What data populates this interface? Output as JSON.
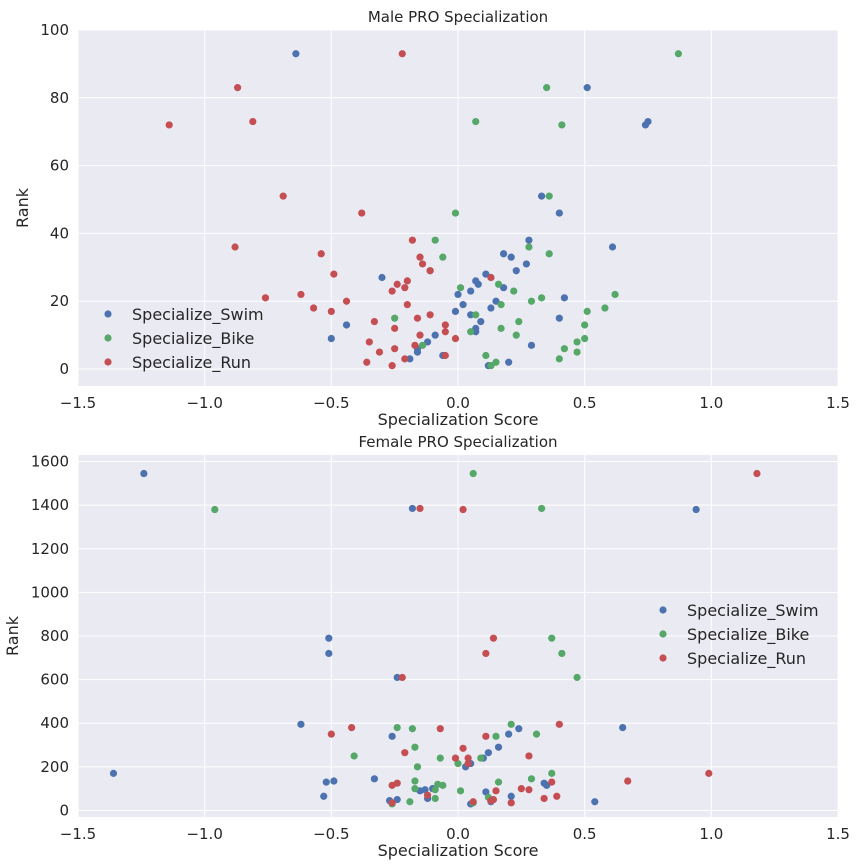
{
  "colors": {
    "swim": "#4c72b0",
    "bike": "#55a868",
    "run": "#c44e52"
  },
  "chart_data": [
    {
      "type": "scatter",
      "title": "Male PRO Specialization",
      "xlabel": "Specialization Score",
      "ylabel": "Rank",
      "xlim": [
        -1.5,
        1.5
      ],
      "ylim": [
        -5,
        100
      ],
      "xticks": [
        -1.5,
        -1.0,
        -0.5,
        0.0,
        0.5,
        1.0,
        1.5
      ],
      "xtick_labels": [
        "−1.5",
        "−1.0",
        "−0.5",
        "0.0",
        "0.5",
        "1.0",
        "1.5"
      ],
      "yticks": [
        0,
        20,
        40,
        60,
        80,
        100
      ],
      "ytick_labels": [
        "0",
        "20",
        "40",
        "60",
        "80",
        "100"
      ],
      "legend_position": "lower-left",
      "series": [
        {
          "name": "Specialize_Swim",
          "color_key": "swim",
          "points": [
            [
              -0.64,
              93
            ],
            [
              0.51,
              83
            ],
            [
              0.75,
              73
            ],
            [
              0.74,
              72
            ],
            [
              0.33,
              51
            ],
            [
              0.4,
              46
            ],
            [
              0.28,
              38
            ],
            [
              0.61,
              36
            ],
            [
              0.18,
              34
            ],
            [
              0.21,
              33
            ],
            [
              0.27,
              31
            ],
            [
              0.23,
              29
            ],
            [
              0.11,
              28
            ],
            [
              -0.3,
              27
            ],
            [
              0.07,
              26
            ],
            [
              0.08,
              25
            ],
            [
              0.18,
              24
            ],
            [
              0.0,
              22
            ],
            [
              0.05,
              23
            ],
            [
              0.42,
              21
            ],
            [
              0.02,
              19
            ],
            [
              0.15,
              20
            ],
            [
              0.13,
              18
            ],
            [
              -0.01,
              17
            ],
            [
              0.05,
              16
            ],
            [
              0.09,
              14
            ],
            [
              0.4,
              15
            ],
            [
              -0.44,
              13
            ],
            [
              0.07,
              12
            ],
            [
              0.07,
              11
            ],
            [
              -0.09,
              10
            ],
            [
              -0.5,
              9
            ],
            [
              -0.12,
              8
            ],
            [
              0.29,
              7
            ],
            [
              -0.16,
              6
            ],
            [
              -0.16,
              5
            ],
            [
              -0.06,
              4
            ],
            [
              -0.19,
              3
            ],
            [
              0.2,
              2
            ],
            [
              0.12,
              1
            ]
          ]
        },
        {
          "name": "Specialize_Bike",
          "color_key": "bike",
          "points": [
            [
              0.87,
              93
            ],
            [
              0.35,
              83
            ],
            [
              0.07,
              73
            ],
            [
              0.41,
              72
            ],
            [
              0.36,
              51
            ],
            [
              -0.01,
              46
            ],
            [
              -0.09,
              38
            ],
            [
              0.28,
              36
            ],
            [
              0.36,
              34
            ],
            [
              -0.06,
              33
            ],
            [
              0.29,
              20
            ],
            [
              0.13,
              27
            ],
            [
              -0.11,
              29
            ],
            [
              0.01,
              24
            ],
            [
              0.16,
              25
            ],
            [
              0.22,
              23
            ],
            [
              0.62,
              22
            ],
            [
              0.33,
              21
            ],
            [
              0.17,
              19
            ],
            [
              0.58,
              18
            ],
            [
              0.51,
              17
            ],
            [
              0.07,
              16
            ],
            [
              -0.25,
              15
            ],
            [
              0.5,
              13
            ],
            [
              0.24,
              14
            ],
            [
              0.17,
              12
            ],
            [
              0.05,
              11
            ],
            [
              0.23,
              10
            ],
            [
              0.5,
              9
            ],
            [
              0.47,
              8
            ],
            [
              -0.14,
              7
            ],
            [
              0.42,
              6
            ],
            [
              0.47,
              5
            ],
            [
              0.11,
              4
            ],
            [
              0.4,
              3
            ],
            [
              0.15,
              2
            ],
            [
              0.13,
              1
            ]
          ]
        },
        {
          "name": "Specialize_Run",
          "color_key": "run",
          "points": [
            [
              -0.22,
              93
            ],
            [
              -0.87,
              83
            ],
            [
              -0.81,
              73
            ],
            [
              -1.14,
              72
            ],
            [
              -0.69,
              51
            ],
            [
              -0.38,
              46
            ],
            [
              -0.18,
              38
            ],
            [
              -0.88,
              36
            ],
            [
              -0.54,
              34
            ],
            [
              -0.15,
              33
            ],
            [
              -0.14,
              31
            ],
            [
              -0.11,
              29
            ],
            [
              -0.49,
              28
            ],
            [
              0.13,
              27
            ],
            [
              -0.2,
              26
            ],
            [
              -0.24,
              25
            ],
            [
              -0.21,
              24
            ],
            [
              -0.26,
              23
            ],
            [
              -0.62,
              22
            ],
            [
              -0.76,
              21
            ],
            [
              -0.44,
              20
            ],
            [
              -0.2,
              19
            ],
            [
              -0.57,
              18
            ],
            [
              -0.5,
              17
            ],
            [
              -0.11,
              16
            ],
            [
              -0.16,
              15
            ],
            [
              -0.33,
              14
            ],
            [
              -0.05,
              13
            ],
            [
              -0.25,
              12
            ],
            [
              -0.05,
              11
            ],
            [
              -0.15,
              10
            ],
            [
              -0.01,
              9
            ],
            [
              -0.35,
              8
            ],
            [
              -0.17,
              7
            ],
            [
              -0.25,
              6
            ],
            [
              -0.31,
              5
            ],
            [
              -0.05,
              4
            ],
            [
              -0.21,
              3
            ],
            [
              -0.36,
              2
            ],
            [
              -0.26,
              1
            ]
          ]
        }
      ]
    },
    {
      "type": "scatter",
      "title": "Female PRO Specialization",
      "xlabel": "Specialization Score",
      "ylabel": "Rank",
      "xlim": [
        -1.5,
        1.5
      ],
      "ylim": [
        -30,
        1630
      ],
      "xticks": [
        -1.5,
        -1.0,
        -0.5,
        0.0,
        0.5,
        1.0,
        1.5
      ],
      "xtick_labels": [
        "−1.5",
        "−1.0",
        "−0.5",
        "0.0",
        "0.5",
        "1.0",
        "1.5"
      ],
      "yticks": [
        0,
        200,
        400,
        600,
        800,
        1000,
        1200,
        1400,
        1600
      ],
      "ytick_labels": [
        "0",
        "200",
        "400",
        "600",
        "800",
        "1000",
        "1200",
        "1400",
        "1600"
      ],
      "legend_position": "center-right",
      "series": [
        {
          "name": "Specialize_Swim",
          "color_key": "swim",
          "points": [
            [
              -1.24,
              1545
            ],
            [
              -0.18,
              1385
            ],
            [
              0.94,
              1380
            ],
            [
              -0.51,
              790
            ],
            [
              -0.51,
              720
            ],
            [
              -0.24,
              610
            ],
            [
              -0.62,
              395
            ],
            [
              0.65,
              380
            ],
            [
              0.24,
              375
            ],
            [
              0.2,
              350
            ],
            [
              -0.26,
              340
            ],
            [
              0.16,
              290
            ],
            [
              0.12,
              265
            ],
            [
              0.1,
              240
            ],
            [
              0.05,
              215
            ],
            [
              0.03,
              200
            ],
            [
              -1.36,
              170
            ],
            [
              -0.33,
              145
            ],
            [
              -0.49,
              135
            ],
            [
              -0.52,
              130
            ],
            [
              0.34,
              125
            ],
            [
              0.35,
              115
            ],
            [
              -0.1,
              100
            ],
            [
              -0.13,
              95
            ],
            [
              -0.15,
              90
            ],
            [
              0.11,
              85
            ],
            [
              -0.53,
              65
            ],
            [
              0.21,
              65
            ],
            [
              -0.12,
              55
            ],
            [
              -0.24,
              50
            ],
            [
              -0.27,
              45
            ],
            [
              0.54,
              40
            ],
            [
              0.13,
              40
            ],
            [
              0.05,
              30
            ]
          ]
        },
        {
          "name": "Specialize_Bike",
          "color_key": "bike",
          "points": [
            [
              0.06,
              1545
            ],
            [
              -0.96,
              1380
            ],
            [
              0.33,
              1385
            ],
            [
              0.37,
              790
            ],
            [
              0.41,
              720
            ],
            [
              0.47,
              610
            ],
            [
              0.21,
              395
            ],
            [
              -0.24,
              380
            ],
            [
              -0.18,
              375
            ],
            [
              0.31,
              350
            ],
            [
              0.15,
              340
            ],
            [
              -0.17,
              290
            ],
            [
              -0.41,
              250
            ],
            [
              0.09,
              240
            ],
            [
              -0.07,
              240
            ],
            [
              0.0,
              215
            ],
            [
              -0.16,
              200
            ],
            [
              0.37,
              170
            ],
            [
              0.29,
              145
            ],
            [
              -0.17,
              135
            ],
            [
              0.16,
              130
            ],
            [
              -0.08,
              120
            ],
            [
              -0.06,
              115
            ],
            [
              -0.17,
              100
            ],
            [
              -0.09,
              95
            ],
            [
              0.01,
              90
            ],
            [
              0.12,
              60
            ],
            [
              -0.09,
              55
            ],
            [
              0.13,
              50
            ],
            [
              -0.19,
              40
            ],
            [
              0.06,
              35
            ],
            [
              -0.26,
              30
            ]
          ]
        },
        {
          "name": "Specialize_Run",
          "color_key": "run",
          "points": [
            [
              1.18,
              1545
            ],
            [
              -0.15,
              1385
            ],
            [
              0.02,
              1380
            ],
            [
              0.14,
              790
            ],
            [
              0.11,
              720
            ],
            [
              -0.22,
              610
            ],
            [
              -0.42,
              380
            ],
            [
              0.4,
              395
            ],
            [
              -0.07,
              375
            ],
            [
              -0.5,
              350
            ],
            [
              0.11,
              340
            ],
            [
              0.02,
              285
            ],
            [
              -0.21,
              265
            ],
            [
              0.28,
              250
            ],
            [
              0.04,
              240
            ],
            [
              -0.01,
              240
            ],
            [
              0.04,
              215
            ],
            [
              0.99,
              170
            ],
            [
              0.67,
              135
            ],
            [
              -0.24,
              125
            ],
            [
              0.37,
              130
            ],
            [
              -0.26,
              115
            ],
            [
              0.25,
              100
            ],
            [
              0.28,
              95
            ],
            [
              0.15,
              90
            ],
            [
              -0.12,
              70
            ],
            [
              0.39,
              65
            ],
            [
              0.34,
              55
            ],
            [
              0.14,
              50
            ],
            [
              0.13,
              45
            ],
            [
              0.06,
              40
            ],
            [
              0.21,
              35
            ],
            [
              -0.26,
              35
            ]
          ]
        }
      ]
    }
  ]
}
